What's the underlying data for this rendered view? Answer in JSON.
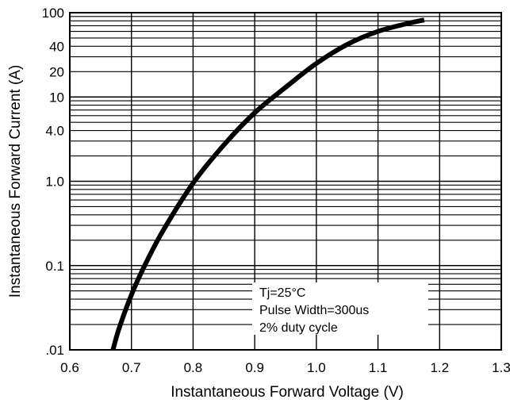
{
  "chart_data": {
    "type": "line",
    "title": "",
    "xlabel": "Instantaneous Forward Voltage (V)",
    "ylabel": "Instantaneous Forward Current (A)",
    "xlim": [
      0.6,
      1.3
    ],
    "ylim": [
      0.01,
      100
    ],
    "y_scale": "log",
    "grid": true,
    "x_ticks": [
      "0.6",
      "0.7",
      "0.8",
      "0.9",
      "1.0",
      "1.1",
      "1.2",
      "1.3"
    ],
    "y_ticks": [
      {
        "value": 100,
        "label": "100"
      },
      {
        "value": 40,
        "label": "40"
      },
      {
        "value": 20,
        "label": "20"
      },
      {
        "value": 10,
        "label": "10"
      },
      {
        "value": 4,
        "label": "4.0"
      },
      {
        "value": 1,
        "label": "1.0"
      },
      {
        "value": 0.1,
        "label": "0.1"
      },
      {
        "value": 0.01,
        "label": ".01"
      }
    ],
    "series": [
      {
        "color": "#000000",
        "x": [
          0.67,
          0.68,
          0.7,
          0.72,
          0.75,
          0.8,
          0.85,
          0.9,
          0.95,
          1.0,
          1.05,
          1.1,
          1.15,
          1.175
        ],
        "y": [
          0.01,
          0.018,
          0.045,
          0.095,
          0.25,
          0.95,
          2.7,
          6.5,
          13,
          25,
          42,
          60,
          75,
          82
        ]
      }
    ],
    "annotations": [
      "Tj=25°C",
      "Pulse Width=300us",
      "2% duty cycle"
    ]
  }
}
